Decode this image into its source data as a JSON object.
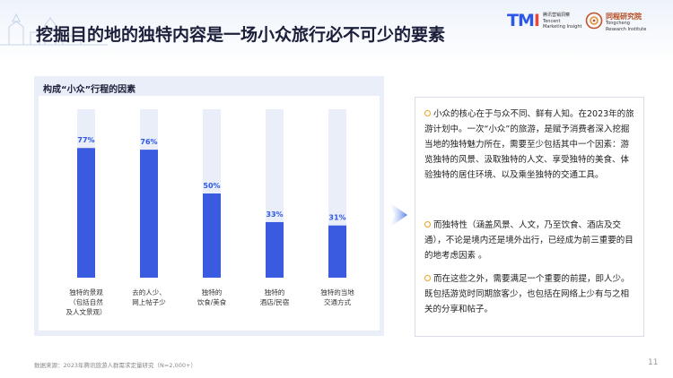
{
  "header": {
    "title": "挖掘目的地的独特内容是一场小众旅行必不可少的要素"
  },
  "logos": {
    "tmi_mark": "TMI",
    "tmi_text": [
      "腾讯营销洞察",
      "Tencent",
      "Marketing Insight"
    ],
    "tongxing_name": "同程研究院",
    "tongxing_text": [
      "Tongcheng",
      "Research Institute"
    ]
  },
  "chart_panel": {
    "title": "构成“小众”行程的因素"
  },
  "chart_data": {
    "type": "bar",
    "title": "构成“小众”行程的因素",
    "categories": [
      [
        "独特的景观",
        "（包括自然",
        "及人文景观）"
      ],
      [
        "去的人少、",
        "网上帖子少"
      ],
      [
        "独特的",
        "饮食/美食"
      ],
      [
        "独特的",
        "酒店/民宿"
      ],
      [
        "独特的当地",
        "交通方式"
      ]
    ],
    "values": [
      77,
      76,
      50,
      33,
      31
    ],
    "value_labels": [
      "77%",
      "76%",
      "50%",
      "33%",
      "31%"
    ],
    "ylim": [
      0,
      100
    ],
    "grid": false,
    "colors": {
      "bar": "#3a5be0",
      "track": "#e9eef8",
      "label": "#2c57e8"
    }
  },
  "text_panel": {
    "paragraphs": [
      "小众的核心在于与众不同、鲜有人知。在2023年的旅游计划中。一次“小众”的旅游，是赋予消费者深入挖掘当地的独特魅力所在，需要至少包括其中一个因素：游览独特的风景、汲取独特的人文、享受独特的美食、体验独特的居住环境、以及乘坐独特的交通工具。",
      "而独特性（涵盖风景、人文，乃至饮食、酒店及交通），不论是境内还是境外出行，已经成为前三重要的目的地考虑因素 。",
      "而在这些之外，需要满足一个重要的前提，即人少。既包括游览时同期旅客少，也包括在网络上少有与之相关的分享和帖子。"
    ]
  },
  "footer": {
    "source": "数据来源：2023年腾讯旅游人群需求定量研究（N=2,000+）",
    "page_number": "11"
  }
}
